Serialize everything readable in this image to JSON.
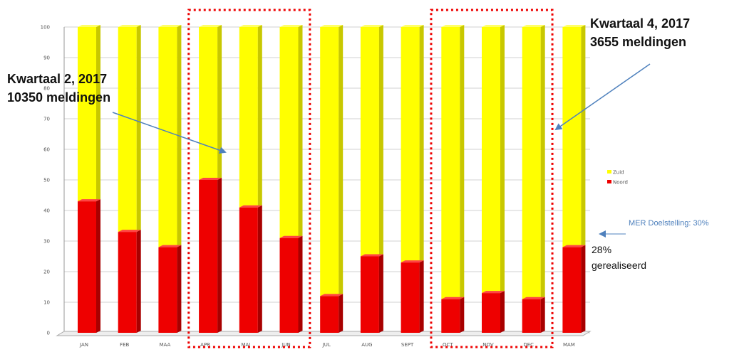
{
  "chart_data": {
    "type": "bar",
    "stacked": true,
    "percent_stacked": true,
    "categories": [
      "JAN",
      "FEB",
      "MAA",
      "APR",
      "MAI",
      "JUN",
      "JUL",
      "AUG",
      "SEPT",
      "OCT",
      "NOV",
      "DEC",
      "MAM"
    ],
    "series": [
      {
        "name": "Noord",
        "color": "#ee0000",
        "values": [
          43,
          33,
          28,
          50,
          41,
          31,
          12,
          25,
          23,
          11,
          13,
          11,
          28
        ]
      },
      {
        "name": "Zuid",
        "color": "#ffff00",
        "values": [
          57,
          67,
          72,
          50,
          59,
          69,
          88,
          75,
          77,
          89,
          87,
          89,
          72
        ]
      }
    ],
    "ylim": [
      0,
      100
    ],
    "yticks": [
      0,
      10,
      20,
      30,
      40,
      50,
      60,
      70,
      80,
      90,
      100
    ],
    "ytick_labels": [
      "0",
      "10",
      "20",
      "30",
      "40",
      "50",
      "60",
      "70",
      "80",
      "90",
      "100"
    ],
    "grid": true,
    "legend_position": "right",
    "highlight_groups": [
      {
        "label": "Kwartaal 2, 2017",
        "categories": [
          "APR",
          "MAI",
          "JUN"
        ]
      },
      {
        "label": "Kwartaal 4, 2017",
        "categories": [
          "OCT",
          "NOV",
          "DEC"
        ]
      }
    ]
  },
  "annotations": {
    "q2_title": "Kwartaal 2, 2017",
    "q2_count": "10350 meldingen",
    "q4_title": "Kwartaal 4, 2017",
    "q4_count": "3655 meldingen",
    "target": "MER Doelstelling: 30%",
    "realized_pct": "28%",
    "realized_text": "gerealiseerd"
  },
  "colors": {
    "annotation_arrow": "#4f81bd",
    "highlight_box": "#ee0000",
    "grid": "#d0d0d0"
  }
}
